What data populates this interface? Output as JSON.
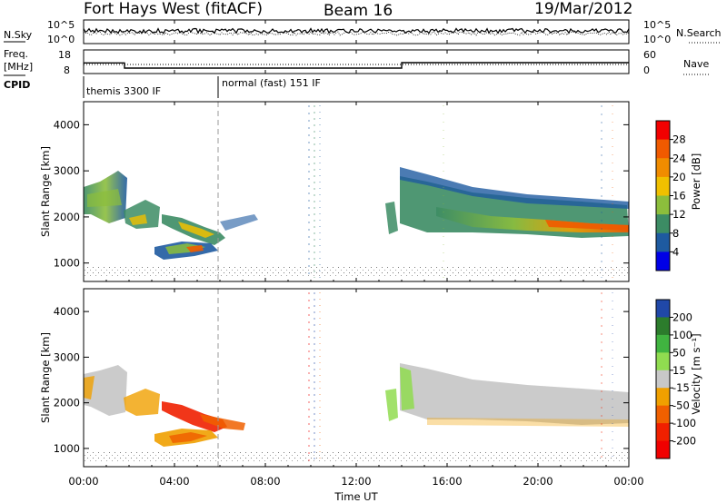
{
  "header": {
    "station": "Fort Hays West (fitACF)",
    "beam": "Beam 16",
    "date": "19/Mar/2012"
  },
  "noise_panel": {
    "label_left": "N.Sky",
    "label_right": "N.Search",
    "left_ticks": [
      "10^5",
      "10^0"
    ],
    "right_ticks": [
      "10^5",
      "10^0"
    ]
  },
  "freq_panel": {
    "label_left_1": "Freq.",
    "label_left_2": "[MHz]",
    "label_right": "Nave",
    "left_ticks": [
      "18",
      "8"
    ],
    "right_ticks": [
      "60",
      "0"
    ]
  },
  "cpid": {
    "label": "CPID",
    "modes": [
      "themis 3300 IF",
      "normal (fast) 151 IF"
    ]
  },
  "power_panel": {
    "ylabel": "Slant Range [km]",
    "colorbar_label": "Power [dB]",
    "colorbar_ticks": [
      "28",
      "24",
      "20",
      "16",
      "12",
      "8",
      "4"
    ],
    "colors": [
      "#f20000",
      "#f05a00",
      "#f08c00",
      "#f0c000",
      "#8cbe3c",
      "#3c8c64",
      "#1e5aa0",
      "#0000e6"
    ]
  },
  "velocity_panel": {
    "ylabel": "Slant Range [km]",
    "colorbar_label": "Velocity [m s⁻¹]",
    "colorbar_ticks": [
      "200",
      "100",
      "50",
      "15",
      "-15",
      "-50",
      "-100",
      "-200"
    ],
    "colors": [
      "#2048a8",
      "#2c7c2c",
      "#40b440",
      "#90dc50",
      "#c8c8c8",
      "#f0a000",
      "#f06000",
      "#f02000",
      "#f00000"
    ]
  },
  "axes": {
    "y_ticks": [
      "4000",
      "3000",
      "2000",
      "1000"
    ],
    "x_ticks": [
      "00:00",
      "04:00",
      "08:00",
      "12:00",
      "16:00",
      "20:00",
      "00:00"
    ],
    "xlabel": "Time UT"
  },
  "chart_data": {
    "type": "heatmap",
    "x_axis": {
      "label": "Time UT",
      "range_hours": [
        0,
        24
      ]
    },
    "y_axis": {
      "label": "Slant Range [km]",
      "range_km": [
        600,
        4500
      ]
    },
    "power_scale_db": [
      0,
      30
    ],
    "velocity_scale_ms": [
      -250,
      250
    ],
    "cpid_modes": [
      {
        "name": "themis 3300 IF",
        "start_hour": 0,
        "end_hour": 6
      },
      {
        "name": "normal (fast) 151 IF",
        "start_hour": 6,
        "end_hour": 24
      }
    ],
    "frequency_mhz": [
      {
        "start_hour": 0,
        "end_hour": 1.8,
        "value": 12.5
      },
      {
        "start_hour": 1.8,
        "end_hour": 14.0,
        "value": 10.3
      },
      {
        "start_hour": 14.0,
        "end_hour": 24,
        "value": 12.6
      }
    ],
    "echo_regions": [
      {
        "t_start": 0.0,
        "t_end": 1.7,
        "range_min": 1600,
        "range_max": 2300,
        "power_db": 12,
        "velocity": 0
      },
      {
        "t_start": 1.7,
        "t_end": 3.2,
        "range_min": 1400,
        "range_max": 2200,
        "power_db": 14,
        "velocity": -40
      },
      {
        "t_start": 3.0,
        "t_end": 6.0,
        "range_min": 1100,
        "range_max": 1700,
        "power_db": 18,
        "velocity": -150
      },
      {
        "t_start": 3.1,
        "t_end": 5.2,
        "range_min": 750,
        "range_max": 1100,
        "power_db": 20,
        "velocity": -60
      },
      {
        "t_start": 5.2,
        "t_end": 7.2,
        "range_min": 1100,
        "range_max": 1400,
        "power_db": 8,
        "velocity": -80
      },
      {
        "t_start": 14.0,
        "t_end": 17.0,
        "range_min": 1300,
        "range_max": 2600,
        "power_db": 16,
        "velocity": 5
      },
      {
        "t_start": 17.0,
        "t_end": 20.5,
        "range_min": 1300,
        "range_max": 2300,
        "power_db": 18,
        "velocity": 0
      },
      {
        "t_start": 20.5,
        "t_end": 24.0,
        "range_min": 1250,
        "range_max": 2000,
        "power_db": 22,
        "velocity": 0
      }
    ]
  }
}
